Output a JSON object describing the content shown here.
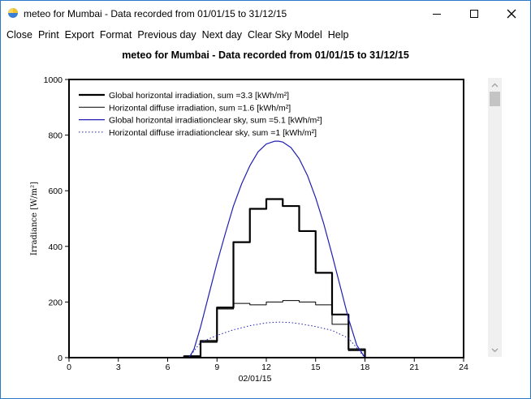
{
  "window": {
    "title": "meteo for Mumbai -  Data recorded from 01/01/15 to 31/12/15",
    "accent": "#2b79c9"
  },
  "menu": [
    {
      "label": "Close",
      "name": "menu-close"
    },
    {
      "label": "Print",
      "name": "menu-print"
    },
    {
      "label": "Export",
      "name": "menu-export"
    },
    {
      "label": "Format",
      "name": "menu-format"
    },
    {
      "label": "Previous day",
      "name": "menu-previous-day"
    },
    {
      "label": "Next day",
      "name": "menu-next-day"
    },
    {
      "label": "Clear Sky Model",
      "name": "menu-clear-sky-model"
    },
    {
      "label": "Help",
      "name": "menu-help"
    }
  ],
  "chart_title": "meteo for Mumbai -  Data recorded from 01/01/15 to 31/12/15",
  "chart_data": {
    "type": "line",
    "title": "meteo for Mumbai -  Data recorded from 01/01/15 to 31/12/15",
    "xlabel": "02/01/15",
    "ylabel": "Irradiance [W/m²]",
    "xlim": [
      0,
      24
    ],
    "ylim": [
      0,
      1000
    ],
    "xticks": [
      0,
      3,
      6,
      9,
      12,
      15,
      18,
      21,
      24
    ],
    "yticks": [
      0,
      200,
      400,
      600,
      800,
      1000
    ],
    "grid": false,
    "legend_position": "top-left",
    "series": [
      {
        "name": "Global horizontal irradiation, sum =3.3 [kWh/m²]",
        "style": "step",
        "color": "#000000",
        "width": 2.2,
        "dash": "",
        "x": [
          7,
          8,
          9,
          10,
          11,
          12,
          13,
          14,
          15,
          16,
          17,
          18
        ],
        "values": [
          5,
          60,
          180,
          415,
          535,
          570,
          545,
          455,
          305,
          155,
          30,
          0
        ]
      },
      {
        "name": "Horizontal diffuse irradiation, sum =1.6 [kWh/m²]",
        "style": "step",
        "color": "#000000",
        "width": 1,
        "dash": "",
        "x": [
          7,
          8,
          9,
          10,
          11,
          12,
          13,
          14,
          15,
          16,
          17,
          18
        ],
        "values": [
          5,
          55,
          175,
          195,
          190,
          200,
          205,
          200,
          190,
          120,
          25,
          0
        ]
      },
      {
        "name": "Global horizontal irradiationclear sky, sum =5.1 [kWh/m²]",
        "style": "curve",
        "color": "#1f1fb4",
        "width": 1.2,
        "dash": "",
        "x": [
          7.3,
          7.6,
          8,
          8.5,
          9,
          9.5,
          10,
          10.5,
          11,
          11.5,
          12,
          12.5,
          12.75,
          13,
          13.5,
          14,
          14.5,
          15,
          15.5,
          16,
          16.5,
          17,
          17.5,
          18
        ],
        "values": [
          0,
          30,
          110,
          225,
          340,
          445,
          545,
          625,
          690,
          740,
          768,
          778,
          778,
          775,
          755,
          715,
          655,
          575,
          480,
          370,
          255,
          140,
          45,
          0
        ]
      },
      {
        "name": "Horizontal diffuse irradiationclear sky, sum =1 [kWh/m²]",
        "style": "curve",
        "color": "#1f1fb4",
        "width": 1,
        "dash": "1.5,2.5",
        "x": [
          7.3,
          8,
          9,
          10,
          11,
          12,
          12.75,
          13.5,
          14,
          15,
          16,
          17,
          18
        ],
        "values": [
          0,
          55,
          80,
          100,
          115,
          125,
          128,
          126,
          122,
          112,
          98,
          70,
          0
        ]
      }
    ]
  }
}
